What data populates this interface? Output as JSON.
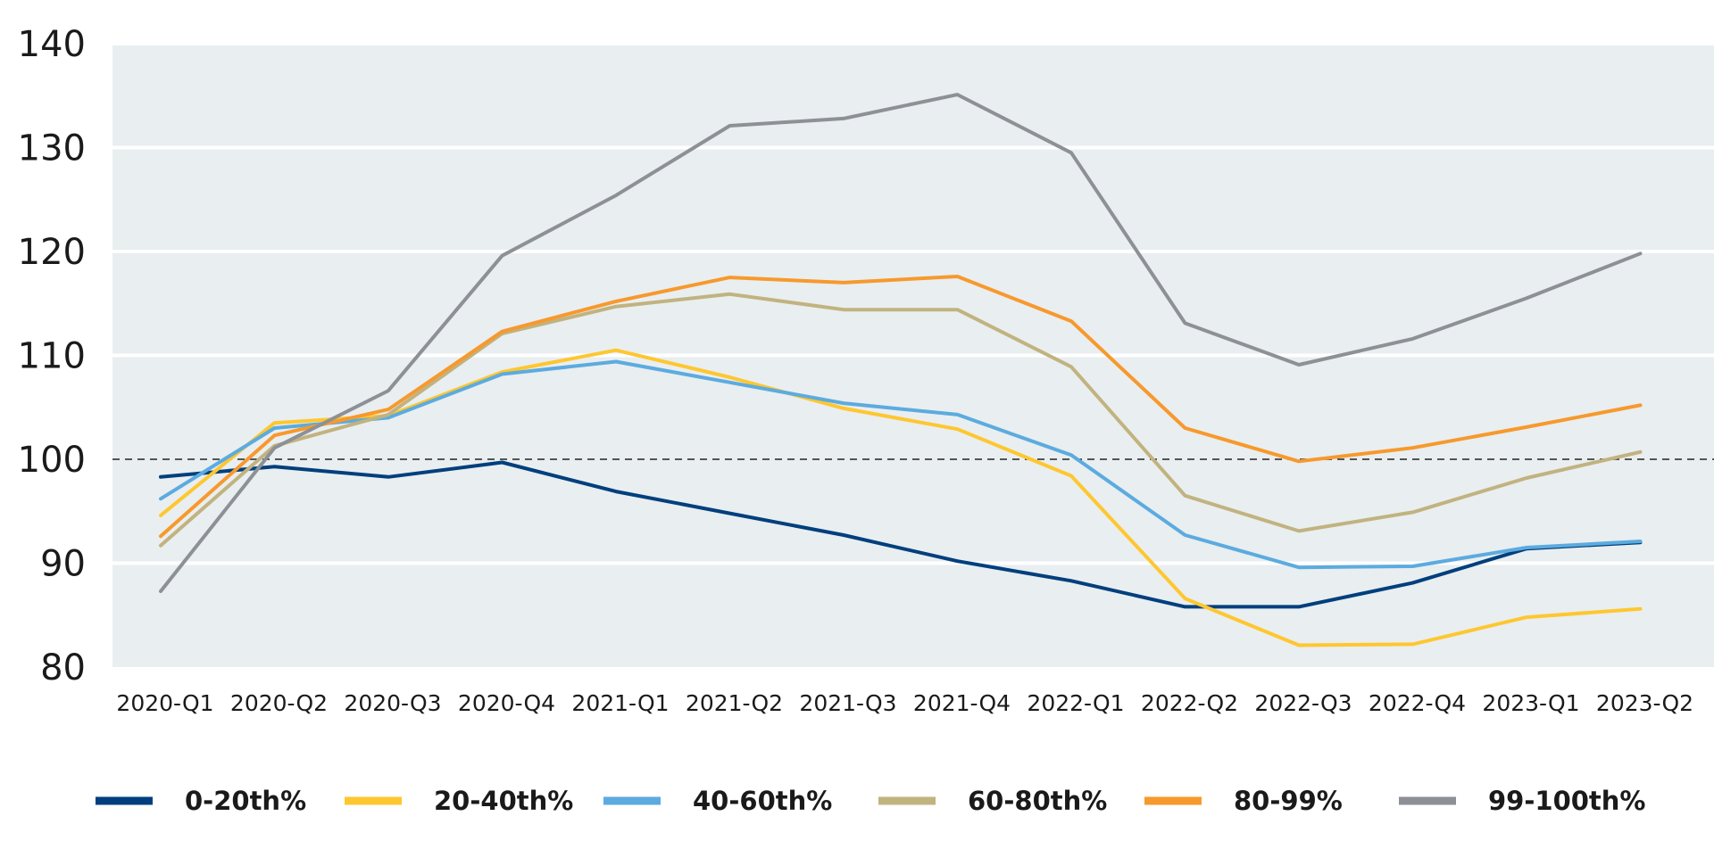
{
  "chart_data": {
    "type": "line",
    "title": "",
    "xlabel": "",
    "ylabel": "",
    "categories": [
      "2020-Q1",
      "2020-Q2",
      "2020-Q3",
      "2020-Q4",
      "2021-Q1",
      "2021-Q2",
      "2021-Q3",
      "2021-Q4",
      "2022-Q1",
      "2022-Q2",
      "2022-Q3",
      "2022-Q4",
      "2023-Q1",
      "2023-Q2"
    ],
    "ylim": [
      80,
      140
    ],
    "yticks": [
      80,
      90,
      100,
      110,
      120,
      130,
      140
    ],
    "ytick_labels": [
      "80",
      "90",
      "100",
      "110",
      "120",
      "130",
      "140"
    ],
    "reference_line": 100,
    "grid": true,
    "legend_position": "bottom",
    "background_color": "#e9eef0",
    "series": [
      {
        "name": "0-20th%",
        "color": "#003f7d",
        "values": [
          98.3,
          99.3,
          98.3,
          99.7,
          96.9,
          94.8,
          92.7,
          90.2,
          88.3,
          85.8,
          85.8,
          88.1,
          91.4,
          92.0
        ]
      },
      {
        "name": "20-40th%",
        "color": "#fec730",
        "values": [
          94.6,
          103.5,
          104.2,
          108.4,
          110.5,
          107.9,
          104.9,
          102.9,
          98.4,
          86.6,
          82.1,
          82.2,
          84.8,
          85.6
        ]
      },
      {
        "name": "40-60th%",
        "color": "#5cabdf",
        "values": [
          96.2,
          103.0,
          104.0,
          108.2,
          109.4,
          107.4,
          105.4,
          104.3,
          100.4,
          92.7,
          89.6,
          89.7,
          91.5,
          92.1
        ]
      },
      {
        "name": "60-80th%",
        "color": "#c1b380",
        "values": [
          91.7,
          101.3,
          104.3,
          112.1,
          114.7,
          115.9,
          114.4,
          114.4,
          108.9,
          96.5,
          93.1,
          94.9,
          98.2,
          100.7
        ]
      },
      {
        "name": "80-99%",
        "color": "#f7992d",
        "values": [
          92.6,
          102.3,
          104.8,
          112.3,
          115.2,
          117.5,
          117.0,
          117.6,
          113.3,
          103.0,
          99.8,
          101.1,
          103.1,
          105.2
        ]
      },
      {
        "name": "99-100th%",
        "color": "#8d9195",
        "values": [
          87.3,
          101.1,
          106.6,
          119.6,
          125.4,
          132.1,
          132.8,
          135.1,
          129.5,
          113.1,
          109.1,
          111.6,
          115.5,
          119.8
        ]
      }
    ]
  }
}
